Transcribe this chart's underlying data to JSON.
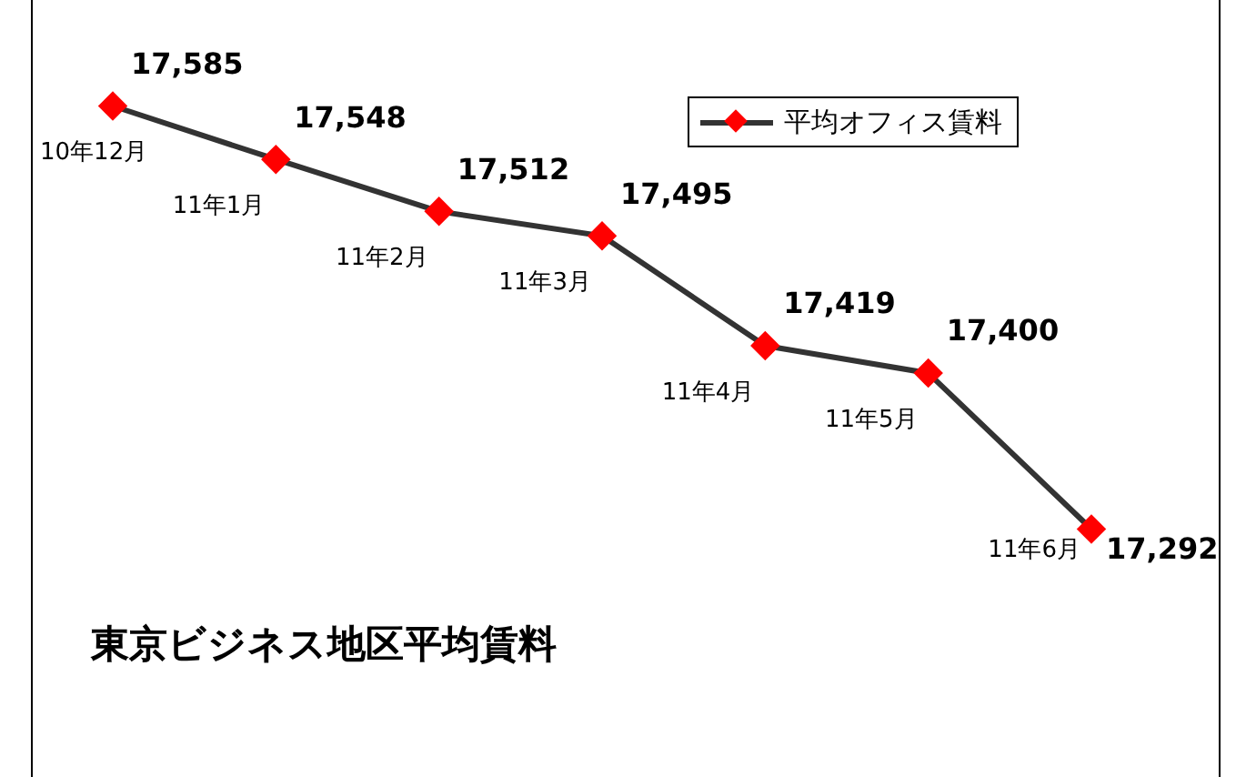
{
  "chart_data": {
    "type": "line",
    "title": "東京ビジネス地区平均賃料",
    "categories": [
      "10年12月",
      "11年1月",
      "11年2月",
      "11年3月",
      "11年4月",
      "11年5月",
      "11年6月"
    ],
    "series": [
      {
        "name": "平均オフィス賃料",
        "color": "#333333",
        "colors": [
          "#ff0000",
          "#ff0000",
          "#ff0000",
          "#ff0000",
          "#ff0000",
          "#ff0000",
          "#ff0000"
        ],
        "values": [
          17585,
          17548,
          17512,
          17495,
          17419,
          17400,
          17292
        ],
        "value_labels": [
          "17,585",
          "17,548",
          "17,512",
          "17,495",
          "17,419",
          "17,400",
          "17,292"
        ]
      }
    ],
    "relative": false,
    "marker": "diamond",
    "line_style": "solid",
    "legend": "top right",
    "tick_labels": false
  }
}
